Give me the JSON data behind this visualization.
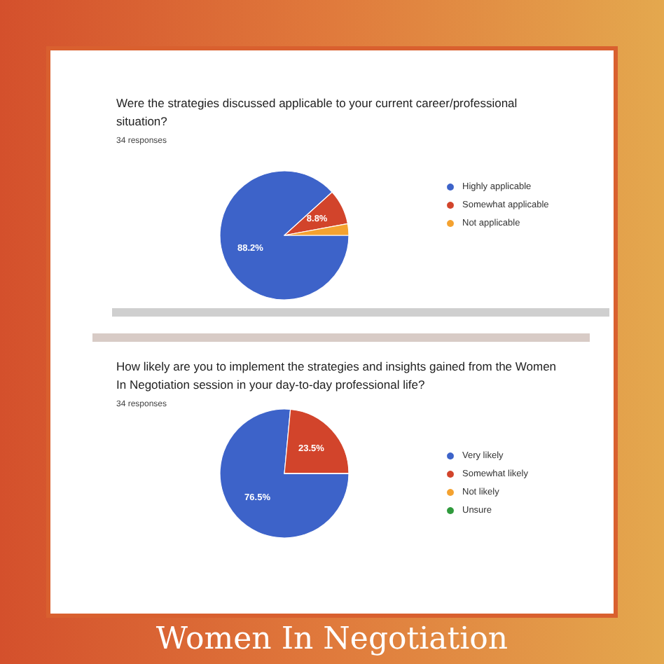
{
  "chart_data": [
    {
      "type": "pie",
      "title": "Were the strategies discussed applicable to your current career/professional situation?",
      "subtitle": "34 responses",
      "categories": [
        "Highly applicable",
        "Somewhat applicable",
        "Not applicable"
      ],
      "values": [
        88.2,
        8.8,
        2.9
      ],
      "colors": [
        "#3d63c9",
        "#d2442b",
        "#f4a230"
      ],
      "value_labels": [
        "88.2%",
        "8.8%",
        null
      ],
      "legend": "right"
    },
    {
      "type": "pie",
      "title": "How likely are you to implement the strategies and insights gained from the Women In Negotiation session in your day-to-day professional life?",
      "subtitle": "34 responses",
      "categories": [
        "Very likely",
        "Somewhat likely",
        "Not likely",
        "Unsure"
      ],
      "values": [
        76.5,
        23.5,
        0,
        0
      ],
      "colors": [
        "#3d63c9",
        "#d2442b",
        "#f4a230",
        "#2f9a3c"
      ],
      "value_labels": [
        "76.5%",
        "23.5%",
        null,
        null
      ],
      "legend": "right",
      "annotations": [
        "Women In Negotiation"
      ]
    }
  ]
}
